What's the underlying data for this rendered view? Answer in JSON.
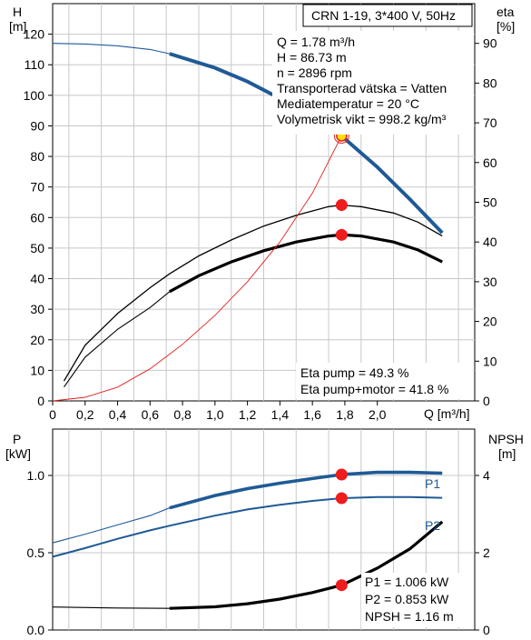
{
  "chart_data": [
    {
      "type": "line",
      "title": "CRN 1-19, 3*400 V, 50Hz",
      "left_axis": {
        "label": "H",
        "unit": "[m]",
        "ylim": [
          0,
          130
        ],
        "ticks": [
          0,
          10,
          20,
          30,
          40,
          50,
          60,
          70,
          80,
          90,
          100,
          110,
          120
        ]
      },
      "right_axis": {
        "label": "eta",
        "unit": "[%]",
        "ylim": [
          0,
          100
        ],
        "ticks": [
          0,
          10,
          20,
          30,
          40,
          50,
          60,
          70,
          80,
          90
        ]
      },
      "x_axis": {
        "label": "Q [m³/h]",
        "xlim": [
          0,
          2.6
        ],
        "ticks": [
          0,
          0.2,
          0.4,
          0.6,
          0.8,
          1.0,
          1.2,
          1.4,
          1.6,
          1.8,
          2.0
        ],
        "tick_labels": [
          "0",
          "0,2",
          "0,4",
          "0,6",
          "0,8",
          "1,0",
          "1,2",
          "1,4",
          "1,6",
          "1,8",
          "2,0"
        ]
      },
      "info": [
        "Q = 1.78 m³/h",
        "H = 86.73 m",
        "n = 2896 rpm",
        "Transporterad vätska = Vatten",
        "Mediatemperatur = 20 °C",
        "Volymetrisk vikt = 998.2 kg/m³"
      ],
      "annotations": [
        "Eta pump = 49.3 %",
        "Eta pump+motor = 41.8 %"
      ],
      "series": [
        {
          "role": "head",
          "axis": "left",
          "color": "#1f5a96",
          "x": [
            0,
            0.2,
            0.4,
            0.6,
            0.72,
            1.0,
            1.2,
            1.4,
            1.6,
            1.78,
            2.0,
            2.2,
            2.4
          ],
          "y": [
            117,
            116.8,
            116.2,
            115,
            113.6,
            109,
            104.5,
            99,
            92.5,
            86.73,
            76.5,
            66,
            55
          ],
          "bold_from": 0.72
        },
        {
          "role": "eta-pump",
          "axis": "right",
          "color": "#000000",
          "x": [
            0.07,
            0.2,
            0.4,
            0.6,
            0.72,
            0.9,
            1.1,
            1.3,
            1.5,
            1.7,
            1.78,
            1.9,
            2.1,
            2.25,
            2.4
          ],
          "y": [
            5,
            14,
            22,
            28.5,
            32,
            36.5,
            40.5,
            44,
            46.7,
            48.9,
            49.3,
            48.9,
            47.3,
            45,
            41.5
          ],
          "bold_from": 99
        },
        {
          "role": "eta-pump-motor",
          "axis": "right",
          "color": "#000000",
          "x": [
            0.07,
            0.2,
            0.4,
            0.6,
            0.72,
            0.9,
            1.1,
            1.3,
            1.5,
            1.7,
            1.78,
            1.9,
            2.1,
            2.25,
            2.4
          ],
          "y": [
            3.5,
            11,
            18,
            23.5,
            27.5,
            31.5,
            35,
            37.8,
            40,
            41.5,
            41.8,
            41.5,
            40,
            38,
            35
          ],
          "bold_from": 0.72
        },
        {
          "role": "system",
          "axis": "left",
          "color": "#e02020",
          "x": [
            0,
            0.2,
            0.4,
            0.6,
            0.8,
            1.0,
            1.2,
            1.4,
            1.6,
            1.78,
            1.85
          ],
          "y": [
            0,
            1.2,
            4.5,
            10.5,
            18.5,
            28,
            39,
            52,
            68,
            86.73,
            94
          ]
        }
      ],
      "duty_points": [
        {
          "axis": "left",
          "x": 1.78,
          "y": 86.73,
          "style": "duty"
        },
        {
          "axis": "right",
          "x": 1.78,
          "y": 49.3
        },
        {
          "axis": "right",
          "x": 1.78,
          "y": 41.8
        }
      ]
    },
    {
      "type": "line",
      "left_axis": {
        "label": "P",
        "unit": "[kW]",
        "ylim": [
          0,
          1.3
        ],
        "ticks": [
          0,
          0.5,
          1.0
        ],
        "tick_labels": [
          "0.0",
          "0.5",
          "1.0"
        ]
      },
      "right_axis": {
        "label": "NPSH",
        "unit": "[m]",
        "ylim": [
          0,
          5.2
        ],
        "ticks": [
          0,
          2,
          4
        ]
      },
      "x_axis": {
        "xlim": [
          0,
          2.6
        ]
      },
      "annotations": [
        "P1 = 1.006 kW",
        "P2 = 0.853 kW",
        "NPSH = 1.16 m"
      ],
      "series": [
        {
          "name": "P1",
          "axis": "left",
          "color": "#1f5a96",
          "x": [
            -0.05,
            0.2,
            0.4,
            0.6,
            0.72,
            1.0,
            1.2,
            1.4,
            1.6,
            1.78,
            2.0,
            2.2,
            2.4
          ],
          "y": [
            0.55,
            0.62,
            0.68,
            0.74,
            0.79,
            0.87,
            0.915,
            0.95,
            0.98,
            1.006,
            1.02,
            1.02,
            1.015
          ],
          "bold_from": 0.72
        },
        {
          "name": "P2",
          "axis": "left",
          "color": "#1f5a96",
          "x": [
            -0.05,
            0.2,
            0.4,
            0.6,
            0.72,
            1.0,
            1.2,
            1.4,
            1.6,
            1.78,
            2.0,
            2.2,
            2.4
          ],
          "y": [
            0.46,
            0.53,
            0.59,
            0.645,
            0.675,
            0.74,
            0.78,
            0.81,
            0.835,
            0.853,
            0.86,
            0.86,
            0.855
          ],
          "bold_from": 99
        },
        {
          "role": "npsh",
          "axis": "right",
          "color": "#000000",
          "x": [
            -0.05,
            0.4,
            0.72,
            1.0,
            1.2,
            1.4,
            1.6,
            1.78,
            2.0,
            2.2,
            2.4
          ],
          "y": [
            0.6,
            0.57,
            0.56,
            0.6,
            0.68,
            0.8,
            0.97,
            1.16,
            1.6,
            2.1,
            2.8
          ],
          "bold_from": 0.72
        }
      ],
      "duty_points": [
        {
          "axis": "left",
          "x": 1.78,
          "y": 1.006
        },
        {
          "axis": "left",
          "x": 1.78,
          "y": 0.853
        },
        {
          "axis": "right",
          "x": 1.78,
          "y": 1.16
        }
      ]
    }
  ]
}
